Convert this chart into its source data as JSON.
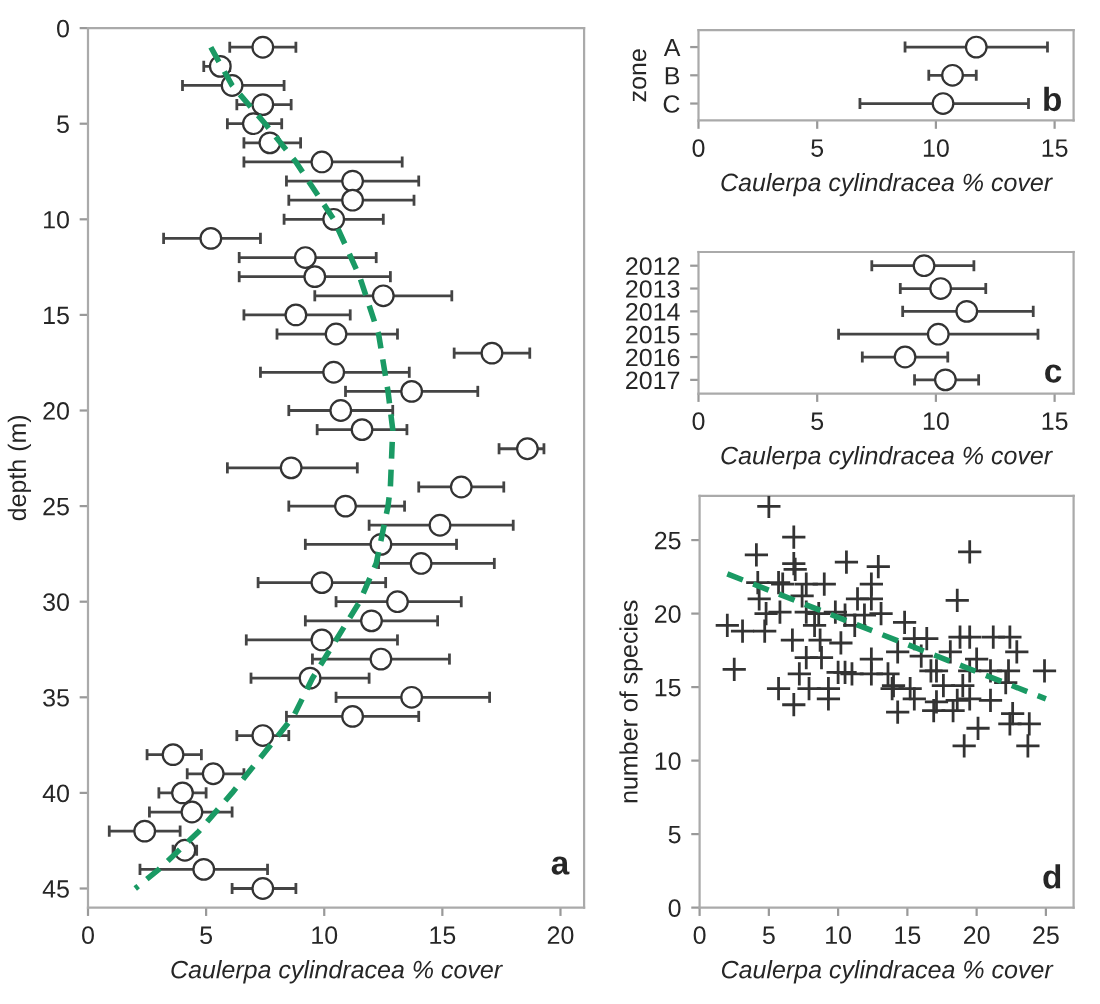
{
  "chart_data": [
    {
      "type": "scatter",
      "xlabel": "Caulerpa cylindracea % cover",
      "ylabel": "depth (m)",
      "xlim": [
        0,
        21
      ],
      "xticks": [
        0,
        5,
        10,
        15,
        20
      ],
      "ylim": [
        46,
        0
      ],
      "yticks": [
        0,
        5,
        10,
        15,
        20,
        25,
        30,
        35,
        40,
        45
      ],
      "grid": false,
      "legend": false,
      "marker": "circle",
      "annotations": [
        "a"
      ],
      "series": [
        {
          "type": "scatter",
          "color": "#ffffff",
          "x": [
            7.4,
            5.6,
            6.1,
            7.4,
            7.0,
            7.7,
            9.9,
            11.2,
            11.2,
            10.4,
            5.2,
            9.2,
            9.6,
            12.5,
            8.8,
            10.5,
            17.1,
            10.4,
            13.7,
            10.7,
            11.6,
            18.6,
            8.6,
            15.8,
            10.9,
            14.9,
            12.4,
            14.1,
            9.9,
            13.1,
            12.0,
            9.9,
            12.4,
            9.4,
            13.7,
            11.2,
            7.4,
            3.6,
            5.3,
            4.0,
            4.4,
            2.4,
            4.1,
            4.9,
            7.4
          ],
          "values": [
            1,
            2,
            3,
            4,
            5,
            6,
            7,
            8,
            9,
            10,
            11,
            12,
            13,
            14,
            15,
            16,
            17,
            18,
            19,
            20,
            21,
            22,
            23,
            24,
            25,
            26,
            27,
            28,
            29,
            30,
            31,
            32,
            33,
            34,
            35,
            36,
            37,
            38,
            39,
            40,
            41,
            42,
            43,
            44,
            45
          ],
          "xerrors": [
            [
              6.0,
              8.8
            ],
            [
              4.9,
              6.0
            ],
            [
              4.0,
              8.3
            ],
            [
              6.3,
              8.6
            ],
            [
              5.9,
              8.2
            ],
            [
              6.6,
              9.0
            ],
            [
              6.6,
              13.3
            ],
            [
              8.4,
              14.0
            ],
            [
              8.5,
              13.8
            ],
            [
              8.3,
              12.5
            ],
            [
              3.2,
              7.3
            ],
            [
              6.4,
              12.2
            ],
            [
              6.4,
              12.8
            ],
            [
              9.6,
              15.4
            ],
            [
              6.6,
              11.1
            ],
            [
              8.0,
              13.1
            ],
            [
              15.5,
              18.7
            ],
            [
              7.3,
              13.6
            ],
            [
              10.9,
              16.5
            ],
            [
              8.5,
              12.9
            ],
            [
              9.7,
              13.5
            ],
            [
              17.4,
              19.3
            ],
            [
              5.9,
              11.4
            ],
            [
              14.0,
              17.6
            ],
            [
              8.5,
              13.4
            ],
            [
              11.9,
              18.0
            ],
            [
              9.2,
              15.6
            ],
            [
              12.3,
              17.2
            ],
            [
              7.2,
              12.6
            ],
            [
              10.5,
              15.8
            ],
            [
              9.2,
              14.8
            ],
            [
              6.7,
              13.1
            ],
            [
              9.5,
              15.3
            ],
            [
              6.9,
              11.9
            ],
            [
              10.5,
              17.0
            ],
            [
              8.4,
              14.0
            ],
            [
              6.3,
              8.5
            ],
            [
              2.5,
              4.8
            ],
            [
              4.2,
              6.6
            ],
            [
              3.0,
              5.0
            ],
            [
              2.6,
              6.1
            ],
            [
              0.9,
              3.9
            ],
            [
              3.6,
              4.6
            ],
            [
              2.2,
              7.6
            ],
            [
              6.1,
              8.8
            ]
          ]
        },
        {
          "type": "line",
          "color": "#1a9a64",
          "line_style": "dashed",
          "marker": "none",
          "x": [
            5.2,
            6.1,
            7.5,
            8.8,
            10.4,
            11.5,
            12.3,
            12.7,
            12.9,
            12.8,
            12.7,
            12.2,
            11.5,
            10.5,
            9.5,
            8.7,
            7.4,
            6.1,
            4.7,
            3.0,
            2.0
          ],
          "values": [
            1,
            3,
            5,
            7,
            10,
            13,
            16,
            19,
            21,
            24,
            25,
            28,
            30,
            32,
            34,
            36,
            38,
            40,
            42,
            44,
            45
          ]
        }
      ]
    },
    {
      "type": "scatter",
      "orientation": "horizontal",
      "xlabel": "Caulerpa cylindracea % cover",
      "ylabel": "zone",
      "categories": [
        "A",
        "B",
        "C"
      ],
      "values": [
        11.7,
        10.7,
        10.3
      ],
      "errors": [
        [
          8.7,
          14.7
        ],
        [
          9.7,
          11.7
        ],
        [
          6.8,
          13.9
        ]
      ],
      "xlim": [
        0,
        15.8
      ],
      "xticks": [
        0,
        5,
        10,
        15
      ],
      "grid": false,
      "legend": false,
      "marker": "circle",
      "annotations": [
        "b"
      ]
    },
    {
      "type": "scatter",
      "orientation": "horizontal",
      "xlabel": "Caulerpa cylindracea % cover",
      "categories": [
        "2012",
        "2013",
        "2014",
        "2015",
        "2016",
        "2017"
      ],
      "values": [
        9.5,
        10.2,
        11.3,
        10.1,
        8.7,
        10.4
      ],
      "errors": [
        [
          7.3,
          11.6
        ],
        [
          8.5,
          12.1
        ],
        [
          8.6,
          14.1
        ],
        [
          5.9,
          14.3
        ],
        [
          6.9,
          10.5
        ],
        [
          9.1,
          11.8
        ]
      ],
      "xlim": [
        0,
        15.8
      ],
      "xticks": [
        0,
        5,
        10,
        15
      ],
      "grid": false,
      "legend": false,
      "marker": "circle",
      "annotations": [
        "c"
      ]
    },
    {
      "type": "scatter",
      "xlabel": "Caulerpa cylindracea % cover",
      "ylabel": "number of species",
      "xlim": [
        0,
        27
      ],
      "xticks": [
        0,
        5,
        10,
        15,
        20,
        25
      ],
      "ylim": [
        0,
        28
      ],
      "yticks": [
        0,
        5,
        10,
        15,
        20,
        25
      ],
      "grid": false,
      "legend": false,
      "marker": "cross",
      "annotations": [
        "d"
      ],
      "series": [
        {
          "type": "scatter",
          "color": "#333333",
          "x": [
            5.0,
            4.1,
            6.8,
            6.8,
            6.9,
            4.2,
            5.7,
            6.0,
            7.7,
            9.0,
            4.3,
            7.4,
            4.8,
            5.8,
            7.7,
            8.6,
            9.8,
            2.0,
            3.1,
            4.7,
            6.7,
            8.7,
            8.3,
            10.2,
            10.5,
            2.5,
            7.7,
            8.8,
            7.2,
            5.7,
            6.8,
            7.9,
            9.3,
            9.3,
            10.0,
            10.5,
            10.6,
            12.9,
            12.4,
            11.4,
            12.4,
            11.2,
            11.9,
            13.1,
            12.4,
            12.4,
            13.6,
            13.9,
            11.0,
            19.5,
            18.6,
            14.8,
            15.5,
            16.4,
            18.8,
            19.5,
            21.2,
            22.4,
            22.9,
            14.3,
            16.0,
            18.1,
            16.7,
            17.1,
            19.5,
            21.0,
            22.3,
            24.9,
            14.0,
            15.2,
            17.6,
            19.0,
            15.5,
            17.1,
            18.6,
            19.5,
            21.0,
            14.3,
            16.9,
            18.3,
            22.6,
            22.4,
            23.8,
            20.1,
            19.1,
            23.7,
            22.1,
            20.0
          ],
          "values": [
            27.3,
            24.0,
            25.2,
            23.4,
            23.0,
            22.1,
            22.1,
            22.0,
            22.0,
            22.0,
            21.0,
            21.2,
            20.0,
            20.1,
            20.1,
            20.0,
            20.1,
            19.2,
            18.8,
            18.8,
            18.2,
            18.2,
            19.2,
            18.0,
            19.9,
            16.2,
            17.0,
            17.0,
            15.9,
            14.9,
            13.8,
            14.9,
            14.9,
            14.2,
            16.0,
            16.0,
            23.5,
            23.2,
            22.0,
            21.0,
            21.0,
            19.2,
            19.9,
            20.0,
            16.9,
            15.9,
            15.9,
            14.9,
            15.9,
            24.2,
            20.9,
            19.4,
            18.3,
            18.3,
            18.4,
            18.4,
            18.4,
            18.4,
            17.4,
            17.4,
            17.1,
            17.4,
            16.1,
            16.1,
            16.1,
            16.1,
            16.1,
            16.1,
            15.1,
            14.9,
            15.1,
            15.1,
            14.2,
            14.0,
            14.1,
            14.2,
            14.1,
            13.3,
            13.4,
            13.4,
            13.2,
            12.5,
            12.5,
            12.2,
            11.0,
            11.0,
            15.3,
            16.9
          ]
        },
        {
          "type": "line",
          "color": "#1a9a64",
          "line_style": "dashed",
          "marker": "none",
          "x": [
            2.0,
            25.0
          ],
          "values": [
            22.7,
            14.2
          ]
        }
      ]
    }
  ]
}
